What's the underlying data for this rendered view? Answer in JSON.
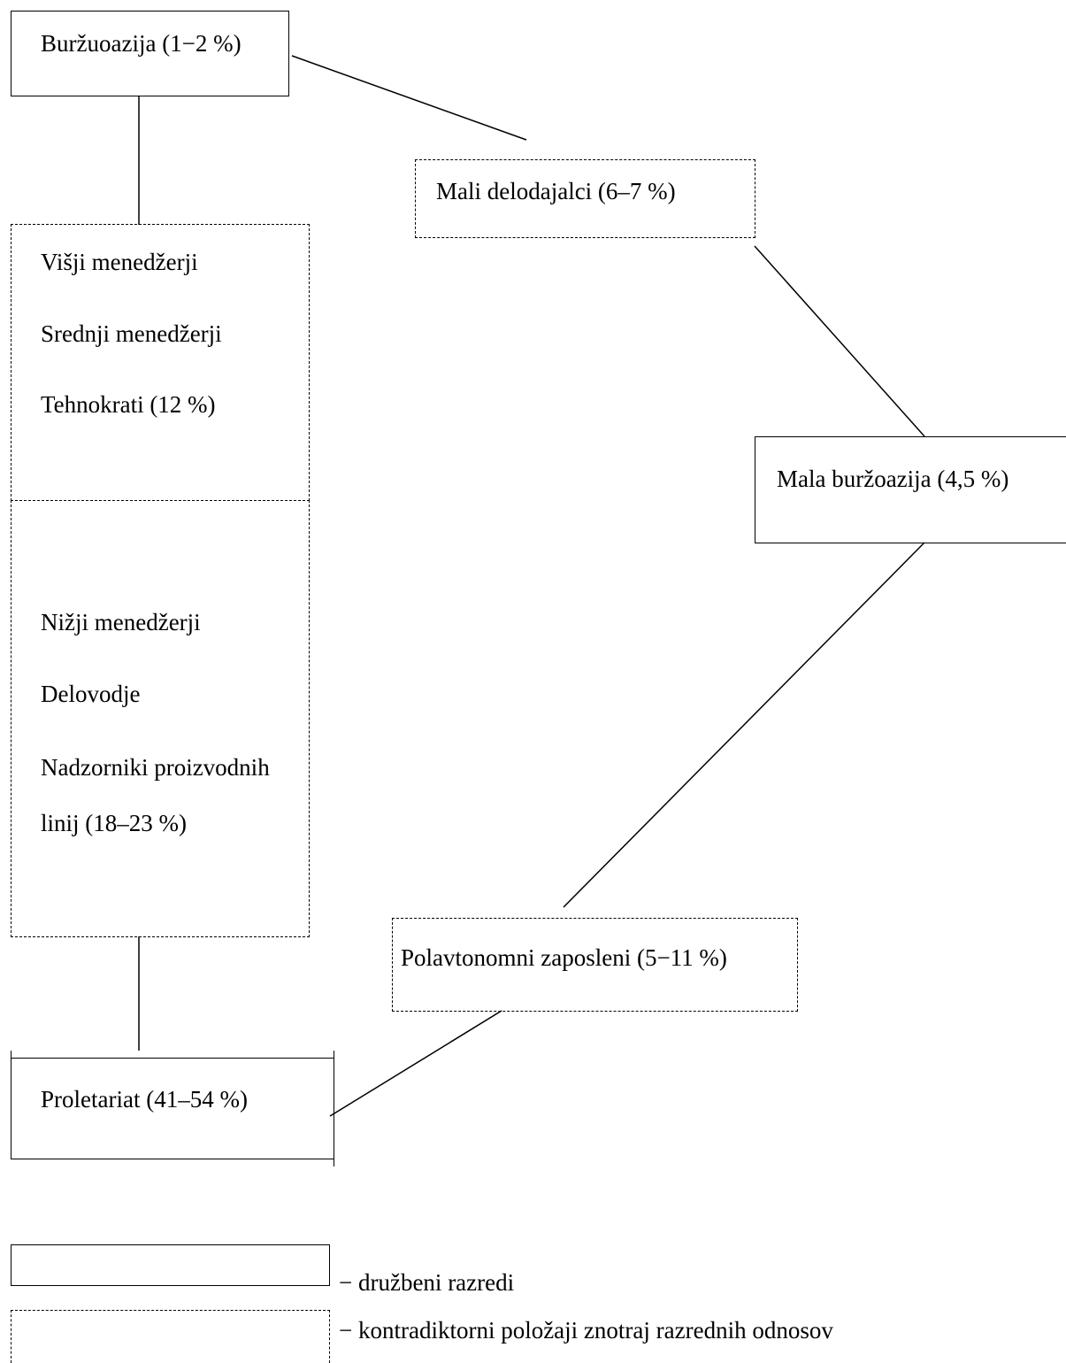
{
  "nodes": {
    "burzoazija": "Buržuoazija (1−2 %)",
    "mali_delodajalci": "Mali delodajalci  (6–7 %)",
    "visji_menedzerji": "Višji menedžerji",
    "srednji_menedzerji": "Srednji menedžerji",
    "tehnokrati": "Tehnokrati   (12 %)",
    "mala_burzoazija": "Mala buržoazija (4,5 %)",
    "nizji_menedzerji": "Nižji menedžerji",
    "delovodje": "Delovodje",
    "nadzorniki_1": "Nadzorniki proizvodnih",
    "nadzorniki_2": "linij  (18–23 %)",
    "polavtonomni": "Polavtonomni zaposleni (5−11 %)",
    "proletariat": "Proletariat    (41–54 %)"
  },
  "legend": {
    "solid_label": "− družbeni razredi",
    "dashed_label": "− kontradiktorni položaji znotraj razrednih odnosov"
  }
}
